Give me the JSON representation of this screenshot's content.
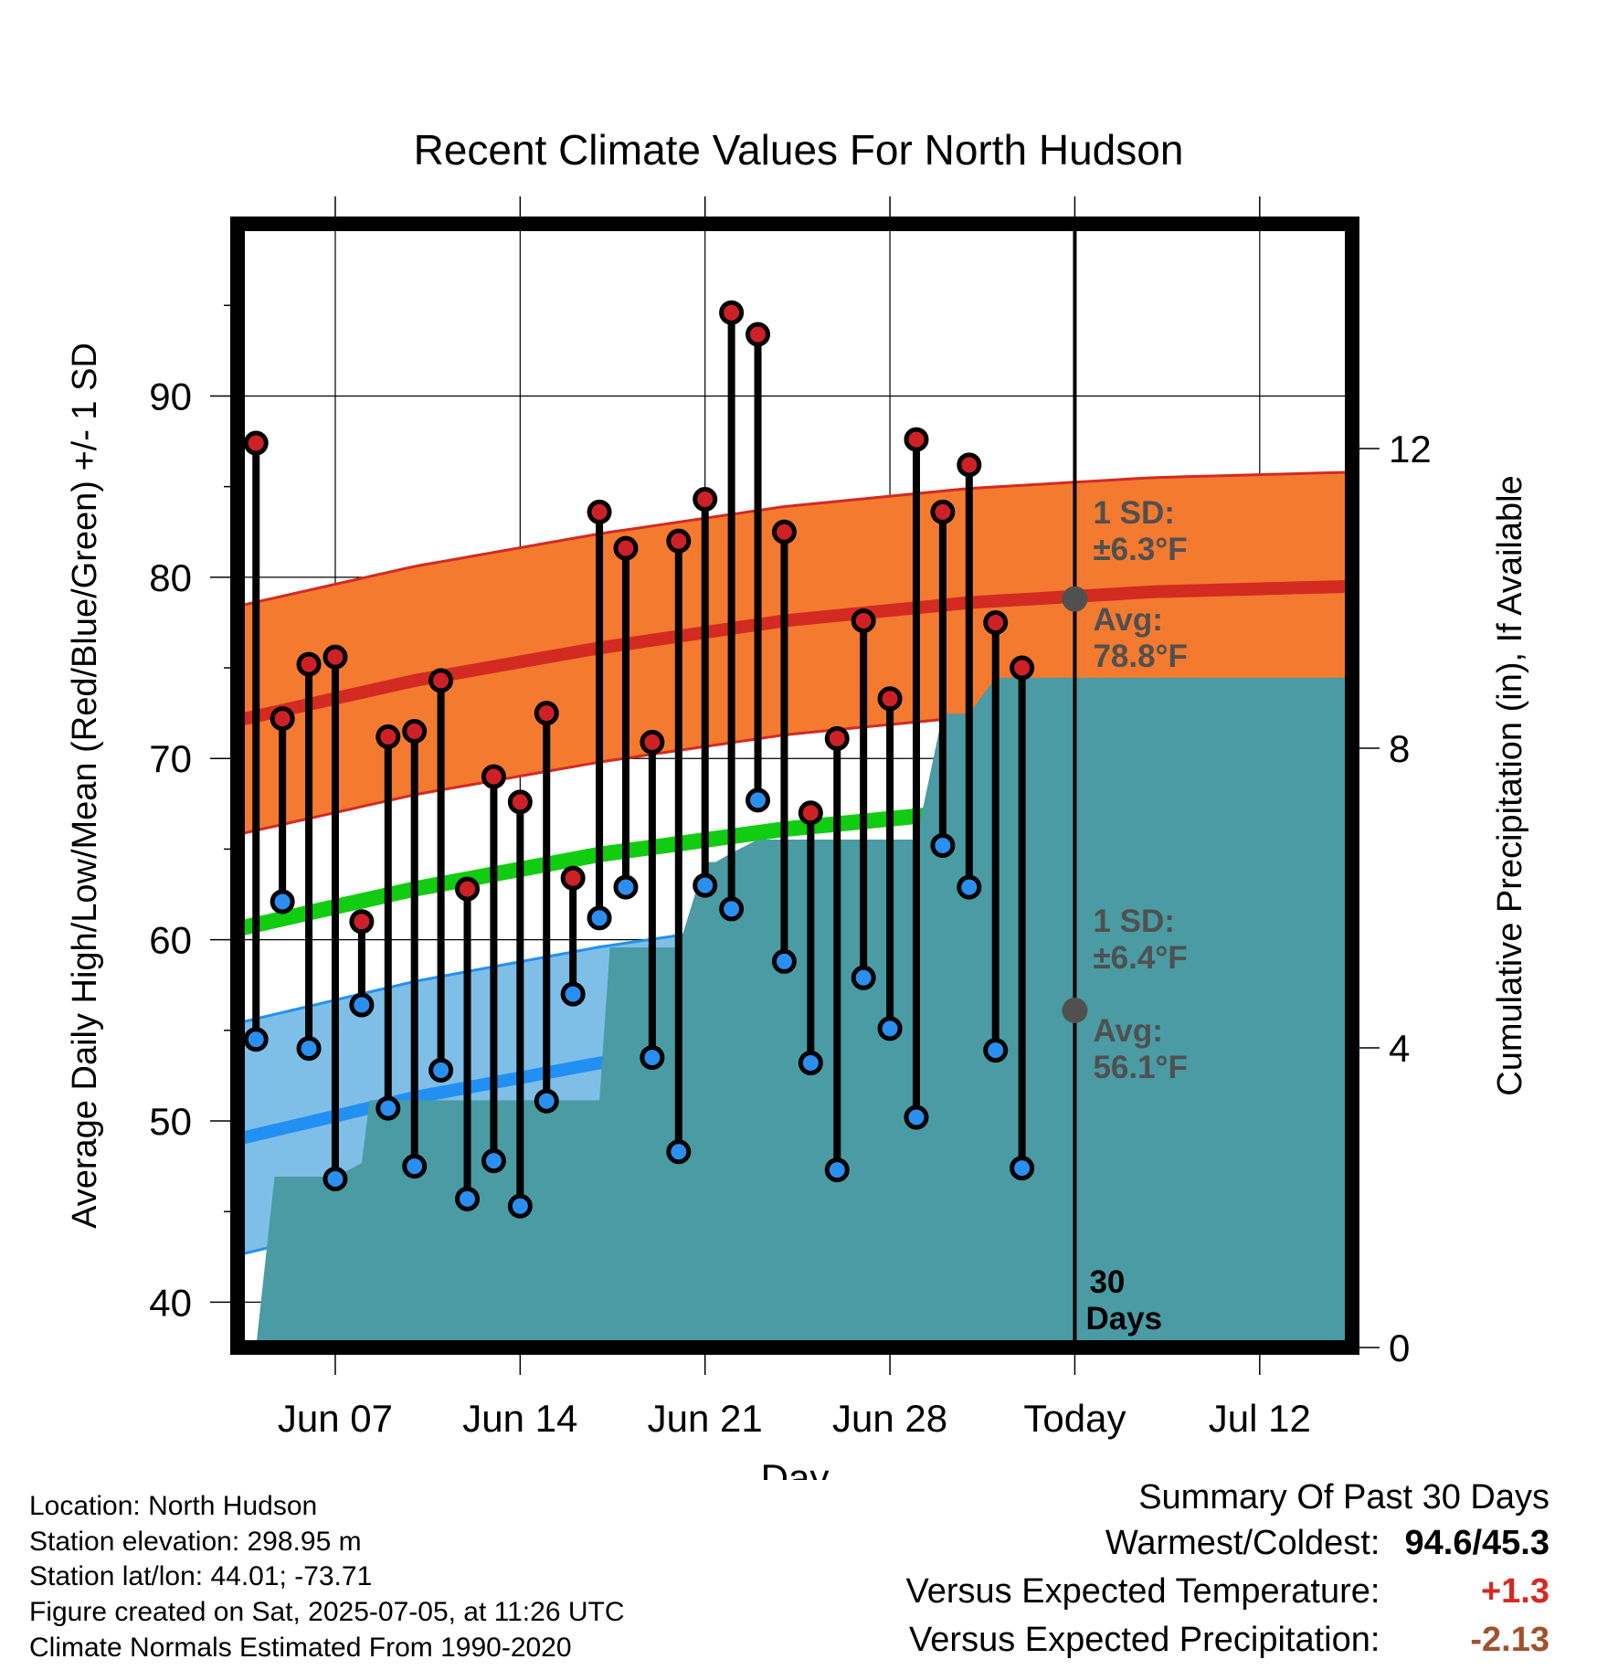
{
  "chart_data": {
    "type": "line",
    "title": "Recent Climate Values For North Hudson",
    "xlabel": "Day",
    "ylabel_left": "Average Daily High/Low/Mean (Red/Blue/Green) +/- 1 SD",
    "ylabel_right": "Cumulative Precipitation (in), If Available",
    "x_ticks": [
      {
        "day": 7,
        "label": "Jun 07"
      },
      {
        "day": 14,
        "label": "Jun 14"
      },
      {
        "day": 21,
        "label": "Jun 21"
      },
      {
        "day": 28,
        "label": "Jun 28"
      },
      {
        "day": 35,
        "label": "Today"
      },
      {
        "day": 42,
        "label": "Jul 12"
      }
    ],
    "xlim": [
      3.3,
      45.5
    ],
    "ylim": [
      37.5,
      99.5
    ],
    "y_ticks": [
      40,
      50,
      60,
      70,
      80,
      90
    ],
    "y2_ticks": [
      0,
      4,
      8,
      12
    ],
    "y2_lim": [
      0,
      2.5
    ],
    "today_day": 35,
    "observations": [
      {
        "day": 4,
        "high": 87.4,
        "low": 54.5
      },
      {
        "day": 5,
        "high": 72.2,
        "low": 62.1
      },
      {
        "day": 6,
        "high": 75.2,
        "low": 54.0
      },
      {
        "day": 7,
        "high": 75.6,
        "low": 46.8
      },
      {
        "day": 8,
        "high": 61.0,
        "low": 56.4
      },
      {
        "day": 9,
        "high": 71.2,
        "low": 50.7
      },
      {
        "day": 10,
        "high": 71.5,
        "low": 47.5
      },
      {
        "day": 11,
        "high": 74.3,
        "low": 52.8
      },
      {
        "day": 12,
        "high": 62.8,
        "low": 45.7
      },
      {
        "day": 13,
        "high": 69.0,
        "low": 47.8
      },
      {
        "day": 14,
        "high": 67.6,
        "low": 45.3
      },
      {
        "day": 15,
        "high": 72.5,
        "low": 51.1
      },
      {
        "day": 16,
        "high": 63.4,
        "low": 57.0
      },
      {
        "day": 17,
        "high": 83.6,
        "low": 61.2
      },
      {
        "day": 18,
        "high": 81.6,
        "low": 62.9
      },
      {
        "day": 19,
        "high": 70.9,
        "low": 53.5
      },
      {
        "day": 20,
        "high": 82.0,
        "low": 48.3
      },
      {
        "day": 21,
        "high": 84.3,
        "low": 63.0
      },
      {
        "day": 22,
        "high": 94.6,
        "low": 61.7
      },
      {
        "day": 23,
        "high": 93.4,
        "low": 67.7
      },
      {
        "day": 24,
        "high": 82.5,
        "low": 58.8
      },
      {
        "day": 25,
        "high": 67.0,
        "low": 53.2
      },
      {
        "day": 26,
        "high": 71.1,
        "low": 47.3
      },
      {
        "day": 27,
        "high": 77.6,
        "low": 57.9
      },
      {
        "day": 28,
        "high": 73.3,
        "low": 55.1
      },
      {
        "day": 29,
        "high": 87.6,
        "low": 50.2
      },
      {
        "day": 30,
        "high": 83.6,
        "low": 65.2
      },
      {
        "day": 31,
        "high": 86.2,
        "low": 62.9
      },
      {
        "day": 32,
        "high": 77.5,
        "low": 53.9
      },
      {
        "day": 33,
        "high": 75.0,
        "low": 47.4
      }
    ],
    "normal_high": {
      "x": [
        3.3,
        10,
        17,
        24,
        31,
        38,
        45.5
      ],
      "mean": [
        72.1,
        74.3,
        76.1,
        77.6,
        78.6,
        79.2,
        79.5
      ],
      "sd": 6.3
    },
    "normal_low": {
      "x": [
        3.3,
        10,
        17,
        24,
        31,
        38,
        45.5
      ],
      "mean": [
        49.0,
        51.3,
        53.2,
        54.7,
        55.7,
        56.4,
        56.8
      ],
      "sd": 6.4
    },
    "normal_mean": {
      "x": [
        3.3,
        10,
        17,
        24,
        31,
        38,
        45.5
      ],
      "mean": [
        60.6,
        62.8,
        64.7,
        66.1,
        67.1,
        67.8,
        68.1
      ]
    },
    "precip_cumulative": {
      "x": [
        4.0,
        4.7,
        5.0,
        6.0,
        7.0,
        8.0,
        8.3,
        9.0,
        10.0,
        16.0,
        17.0,
        17.4,
        18.0,
        19.0,
        20.0,
        21.0,
        21.4,
        22.0,
        23.0,
        29.0,
        30.0,
        31.0,
        32.0,
        45.5
      ],
      "y": [
        0.0,
        0.38,
        0.38,
        0.38,
        0.38,
        0.41,
        0.55,
        0.55,
        0.55,
        0.55,
        0.55,
        0.89,
        0.89,
        0.89,
        0.89,
        1.08,
        1.08,
        1.1,
        1.13,
        1.13,
        1.41,
        1.41,
        1.49,
        1.49
      ]
    },
    "annotations": {
      "high_sd_title": "1 SD:",
      "high_sd_value": "±6.3°F",
      "high_avg_title": "Avg:",
      "high_avg_value": "78.8°F",
      "high_avg_at_today": 78.8,
      "low_sd_title": "1 SD:",
      "low_sd_value": "±6.4°F",
      "low_avg_title": "Avg:",
      "low_avg_value": "56.1°F",
      "low_avg_at_today": 56.1,
      "days_line1": "30",
      "days_line2": "Days"
    },
    "colors": {
      "high_band": "#f47a30",
      "high_line": "#d32a22",
      "low_band": "#7fbfe7",
      "low_line": "#2290f2",
      "mean_line": "#11cc11",
      "precip": "#4a9ba3",
      "high_marker": "#cd2127",
      "low_marker": "#2a8ff0",
      "annotation": "#505050"
    }
  },
  "footer": {
    "location": "Location: North Hudson",
    "elevation": "Station elevation: 298.95 m",
    "latlon": "Station lat/lon: 44.01; -73.71",
    "created": "Figure created on Sat, 2025-07-05, at 11:26 UTC",
    "normals": "Climate Normals Estimated From 1990-2020"
  },
  "summary": {
    "title": "Summary Of Past 30 Days",
    "warmest_label": "Warmest/Coldest:",
    "warmest_value": "94.6/45.3",
    "temp_label": "Versus Expected Temperature:",
    "temp_value": "+1.3",
    "temp_color": "#d32a22",
    "precip_label": "Versus Expected Precipitation:",
    "precip_value": "-2.13",
    "precip_color": "#a0522d"
  }
}
